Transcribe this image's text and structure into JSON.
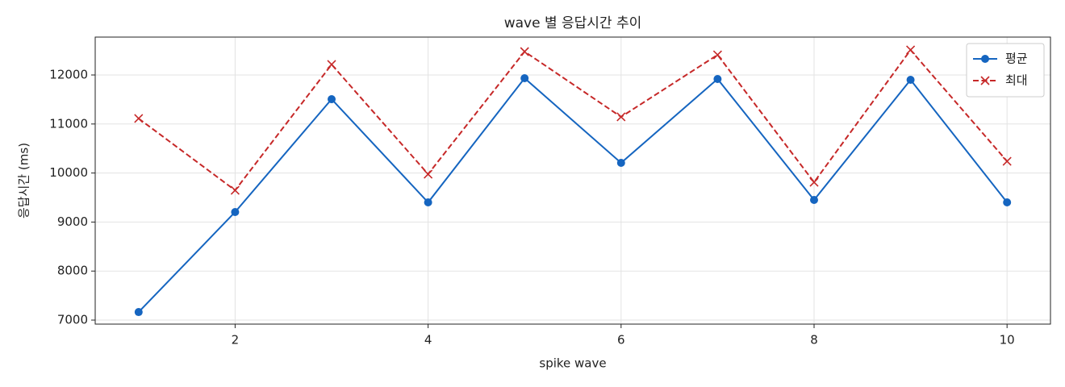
{
  "chart_data": {
    "type": "line",
    "title": "wave 별 응답시간 추이",
    "xlabel": "spike wave",
    "ylabel": "응답시간 (ms)",
    "x": [
      1,
      2,
      3,
      4,
      5,
      6,
      7,
      8,
      9,
      10
    ],
    "series": [
      {
        "name": "평균",
        "color": "#1565c0",
        "marker": "o",
        "linestyle": "solid",
        "values": [
          7164,
          9204,
          11507,
          9401,
          11934,
          10207,
          11918,
          9451,
          11901,
          9401
        ]
      },
      {
        "name": "최대",
        "color": "#c62828",
        "marker": "x",
        "linestyle": "dashed",
        "values": [
          11112,
          9648,
          12214,
          9977,
          12477,
          11145,
          12411,
          9812,
          12510,
          10240
        ]
      }
    ],
    "xlim": [
      0.55,
      10.45
    ],
    "xticks": [
      2,
      4,
      6,
      8,
      10
    ],
    "ylim": [
      6918,
      12773
    ],
    "yticks": [
      7000,
      8000,
      9000,
      10000,
      11000,
      12000
    ],
    "grid": true,
    "legend": "upper right"
  }
}
